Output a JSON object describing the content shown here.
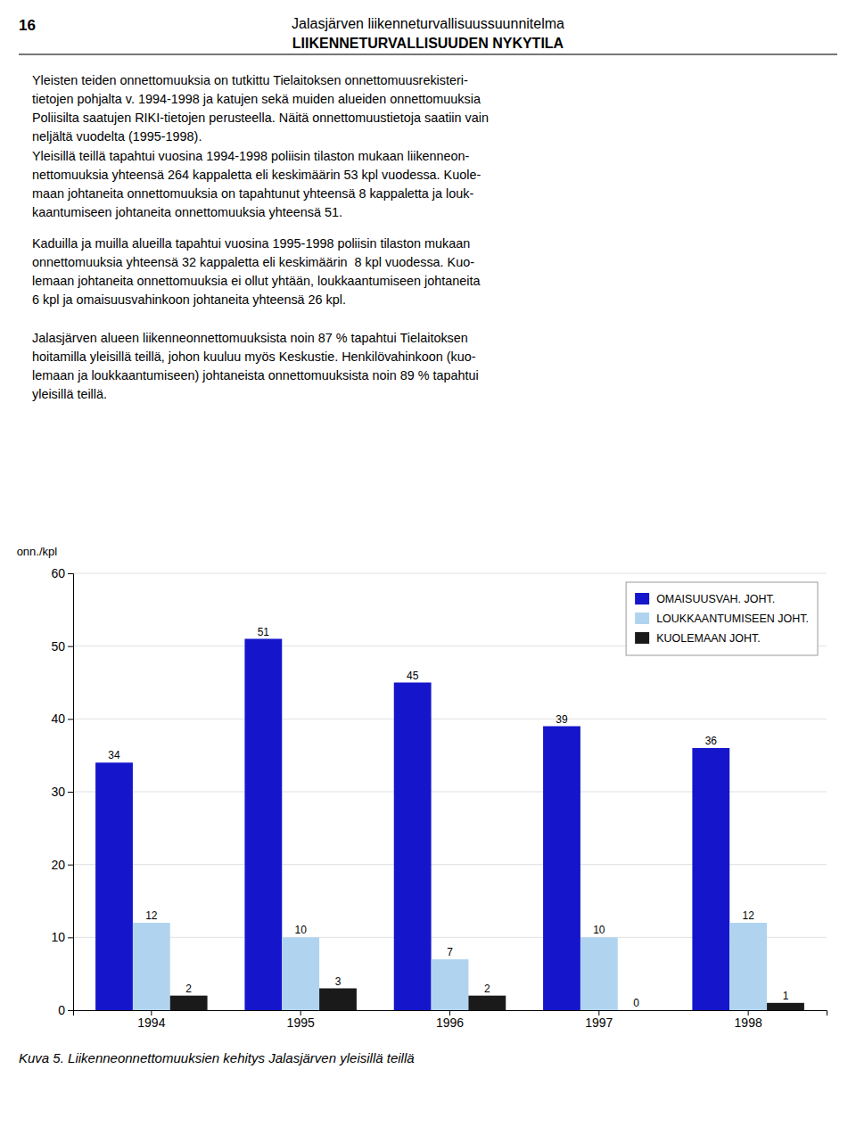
{
  "page": {
    "page_number": "16",
    "header_title": "Jalasjärven liikenneturvallisuussuunnitelma",
    "header_subtitle": "LIIKENNETURVALLISUUDEN NYKYTILA",
    "paragraphs": [
      [
        "Yleisten teiden onnettomuuksia on tutkittu Tielaitoksen onnettomuusrekisteri-",
        "tietojen pohjalta v. 1994-1998 ja katujen sekä muiden alueiden onnettomuuksia",
        "Poliisilta saatujen RIKI-tietojen perusteella. Näitä onnettomuustietoja saatiin vain",
        "neljältä vuodelta (1995-1998)."
      ],
      [
        "Yleisillä teillä tapahtui vuosina 1994-1998 poliisin tilaston mukaan liikenneon-",
        "nettomuuksia yhteensä 264 kappaletta eli keskimäärin 53 kpl vuodessa. Kuole-",
        "maan johtaneita onnettomuuksia on tapahtunut yhteensä 8 kappaletta ja louk-",
        "kaantumiseen johtaneita onnettomuuksia yhteensä 51."
      ],
      [
        "Kaduilla ja muilla alueilla tapahtui vuosina 1995-1998 poliisin tilaston mukaan",
        "onnettomuuksia yhteensä 32 kappaletta eli keskimäärin  8 kpl vuodessa. Kuo-",
        "lemaan johtaneita onnettomuuksia ei ollut yhtään, loukkaantumiseen johtaneita",
        "6 kpl ja omaisuusvahinkoon johtaneita yhteensä 26 kpl."
      ],
      [
        "Jalasjärven alueen liikenneonnettomuuksista noin 87 % tapahtui Tielaitoksen",
        "hoitamilla yleisillä teillä, johon kuuluu myös Keskustie. Henkilövahinkoon (kuo-",
        "lemaan ja loukkaantumiseen) johtaneista onnettomuuksista noin 89 % tapahtui",
        "yleisillä teillä."
      ]
    ]
  },
  "chart_data": {
    "type": "bar",
    "title": "Kuva 5. Liikenneonnettomuuksien kehitys Jalasjärven yleisillä teillä",
    "ylabel": "onn./kpl",
    "categories": [
      "1994",
      "1995",
      "1996",
      "1997",
      "1998"
    ],
    "series": [
      {
        "name": "OMAISUUSVAH. JOHT.",
        "color": "#1515CC",
        "values": [
          34,
          51,
          45,
          39,
          36
        ]
      },
      {
        "name": "LOUKKAANTUMISEEN JOHT.",
        "color": "#B0D4F0",
        "values": [
          12,
          10,
          7,
          10,
          12
        ]
      },
      {
        "name": "KUOLEMAAN JOHT.",
        "color": "#1a1a1a",
        "values": [
          2,
          3,
          2,
          0,
          1
        ]
      }
    ],
    "ylim": [
      0,
      60
    ],
    "yticks": [
      0,
      10,
      20,
      30,
      40,
      50,
      60
    ],
    "grid": true,
    "legend": "upper right",
    "data_labels": true
  }
}
